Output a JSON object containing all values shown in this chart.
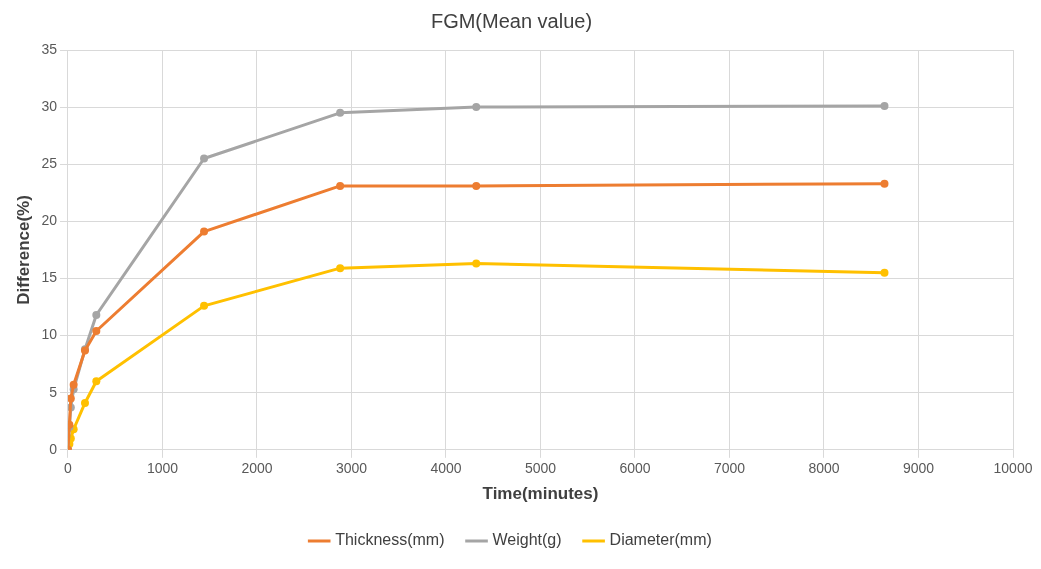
{
  "chart_data": {
    "type": "line",
    "title": "FGM(Mean value)",
    "xlabel": "Time(minutes)",
    "ylabel": "Difference(%)",
    "x": [
      0,
      15,
      30,
      60,
      180,
      300,
      1440,
      2880,
      4320,
      8640
    ],
    "series": [
      {
        "name": "Thickness(mm)",
        "color": "#ed7d31",
        "values": [
          0,
          2.2,
          4.5,
          5.7,
          8.7,
          10.4,
          19.1,
          23.1,
          23.1,
          23.3
        ]
      },
      {
        "name": "Weight(g)",
        "color": "#a5a5a5",
        "values": [
          0,
          2,
          3.7,
          5.3,
          8.8,
          11.8,
          25.5,
          29.5,
          30,
          30.1
        ]
      },
      {
        "name": "Diameter(mm)",
        "color": "#ffc000",
        "values": [
          0,
          0.5,
          1,
          1.8,
          4.1,
          6,
          12.6,
          15.9,
          16.3,
          15.5
        ]
      }
    ],
    "xlim": [
      0,
      10000
    ],
    "xticks": [
      0,
      1000,
      2000,
      3000,
      4000,
      5000,
      6000,
      7000,
      8000,
      9000,
      10000
    ],
    "ylim": [
      0,
      35
    ],
    "yticks": [
      0,
      5,
      10,
      15,
      20,
      25,
      30,
      35
    ],
    "grid": true,
    "legend": "bottom",
    "marker": "circle",
    "line_style": "solid"
  }
}
